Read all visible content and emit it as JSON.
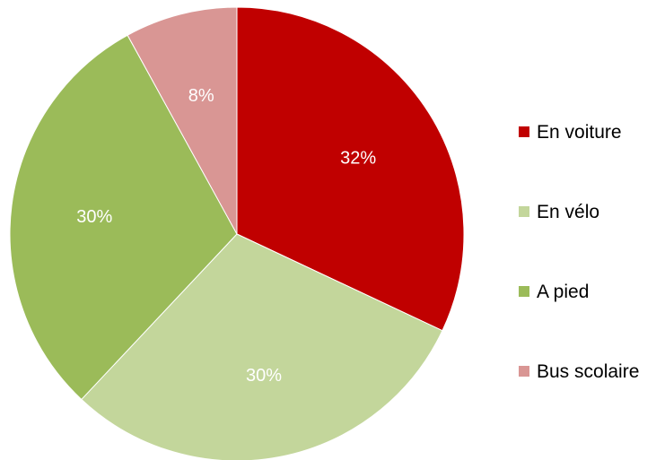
{
  "chart_data": {
    "type": "pie",
    "categories": [
      "En voiture",
      "En vélo",
      "A pied",
      "Bus scolaire"
    ],
    "values": [
      32,
      30,
      30,
      8
    ],
    "labels": [
      "32%",
      "30%",
      "30%",
      "8%"
    ],
    "colors": [
      "#c00000",
      "#c3d69b",
      "#9bbb59",
      "#d99694"
    ],
    "start": "12 o'clock",
    "direction": "clockwise",
    "legend": {
      "position": "right",
      "entries": [
        "En voiture",
        "En vélo",
        "A pied",
        "Bus scolaire"
      ]
    }
  }
}
